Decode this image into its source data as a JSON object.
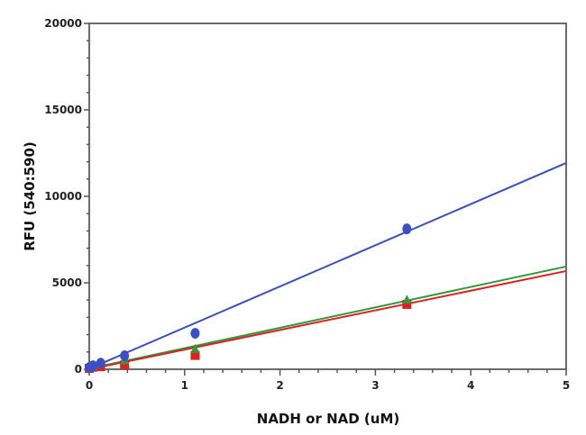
{
  "chart_data": {
    "type": "scatter",
    "title": "",
    "xlabel": "NADH or NAD (uM)",
    "ylabel": "RFU (540:590)",
    "xlim": [
      0,
      5
    ],
    "ylim": [
      0,
      20000
    ],
    "x_ticks": [
      0,
      1,
      2,
      3,
      4,
      5
    ],
    "y_ticks": [
      0,
      5000,
      10000,
      15000,
      20000
    ],
    "grid": false,
    "legend": null,
    "series": [
      {
        "name": "blue",
        "color": "#3b4fc4",
        "marker": "circle",
        "x": [
          0,
          0.04,
          0.12,
          0.37,
          1.11,
          3.33
        ],
        "y": [
          100,
          200,
          350,
          780,
          2080,
          8120
        ],
        "fit": {
          "slope": 2380,
          "intercept": 30
        }
      },
      {
        "name": "green",
        "color": "#2e9a3a",
        "marker": "triangle",
        "x": [
          0,
          0.04,
          0.12,
          0.37,
          1.11,
          3.33
        ],
        "y": [
          80,
          150,
          300,
          500,
          1150,
          4000
        ],
        "fit": {
          "slope": 1180,
          "intercept": 40
        }
      },
      {
        "name": "red",
        "color": "#e02020",
        "marker": "square",
        "x": [
          0,
          0.04,
          0.12,
          0.37,
          1.11,
          3.33
        ],
        "y": [
          50,
          120,
          150,
          250,
          800,
          3750
        ],
        "fit": {
          "slope": 1140,
          "intercept": -20
        }
      }
    ]
  }
}
